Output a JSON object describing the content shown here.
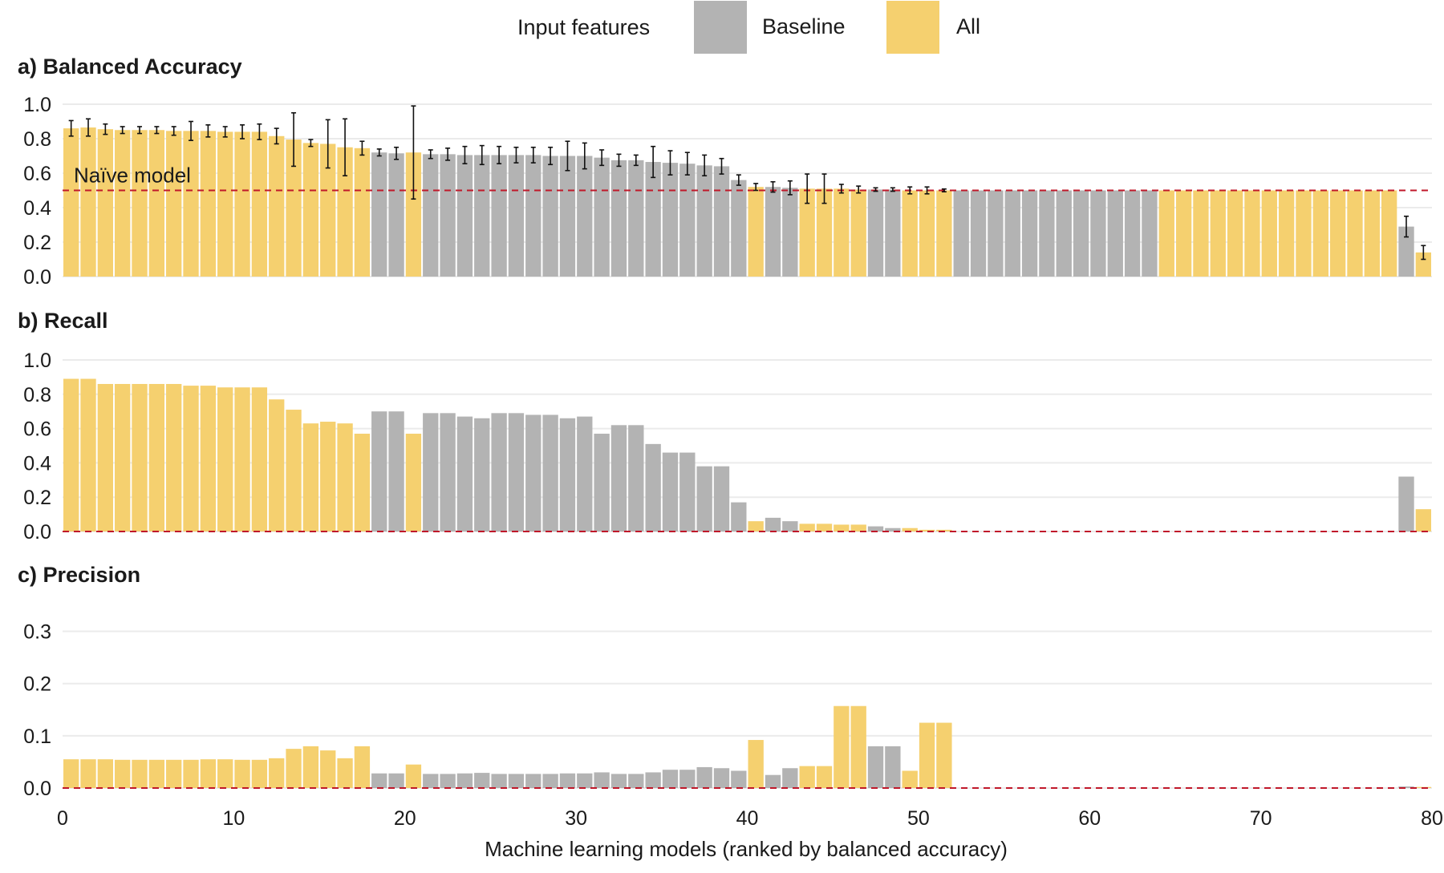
{
  "colors": {
    "baseline": "#B3B3B3",
    "all": "#F5D06F",
    "naive_line": "#C0182A",
    "grid": "#EBEBEB",
    "errorbar": "#111111"
  },
  "legend": {
    "title": "Input features",
    "items": [
      {
        "label": "Baseline",
        "color_key": "baseline"
      },
      {
        "label": "All",
        "color_key": "all"
      }
    ]
  },
  "chart_data": {
    "type": "bar",
    "xlabel": "Machine learning models (ranked by balanced accuracy)",
    "xlim": [
      0,
      80
    ],
    "xticks": [
      0,
      10,
      20,
      30,
      40,
      50,
      60,
      70,
      80
    ],
    "naive_label": "Naïve model",
    "groups": [
      "A",
      "A",
      "A",
      "A",
      "A",
      "A",
      "A",
      "A",
      "A",
      "A",
      "A",
      "A",
      "A",
      "A",
      "A",
      "A",
      "A",
      "A",
      "B",
      "B",
      "A",
      "B",
      "B",
      "B",
      "B",
      "B",
      "B",
      "B",
      "B",
      "B",
      "B",
      "B",
      "B",
      "B",
      "B",
      "B",
      "B",
      "B",
      "B",
      "B",
      "A",
      "B",
      "B",
      "A",
      "A",
      "A",
      "A",
      "B",
      "B",
      "A",
      "A",
      "A",
      "B",
      "B",
      "B",
      "B",
      "B",
      "B",
      "B",
      "B",
      "B",
      "B",
      "B",
      "B",
      "A",
      "A",
      "A",
      "A",
      "A",
      "A",
      "A",
      "A",
      "A",
      "A",
      "A",
      "A",
      "A",
      "A",
      "B",
      "A"
    ],
    "panels": [
      {
        "title": "a) Balanced Accuracy",
        "ylim": [
          0,
          1.0
        ],
        "yticks": [
          0.0,
          0.2,
          0.4,
          0.6,
          0.8,
          1.0
        ],
        "ytick_labels": [
          "0.0",
          "0.2",
          "0.4",
          "0.6",
          "0.8",
          "1.0"
        ],
        "naive": 0.5,
        "show_naive_label": true,
        "values": [
          0.86,
          0.865,
          0.855,
          0.85,
          0.85,
          0.85,
          0.845,
          0.845,
          0.845,
          0.84,
          0.84,
          0.84,
          0.815,
          0.795,
          0.775,
          0.77,
          0.75,
          0.745,
          0.72,
          0.715,
          0.72,
          0.71,
          0.71,
          0.705,
          0.705,
          0.705,
          0.705,
          0.705,
          0.7,
          0.7,
          0.7,
          0.69,
          0.675,
          0.675,
          0.665,
          0.66,
          0.655,
          0.645,
          0.64,
          0.56,
          0.52,
          0.52,
          0.515,
          0.51,
          0.51,
          0.51,
          0.505,
          0.505,
          0.505,
          0.5,
          0.5,
          0.5,
          0.5,
          0.5,
          0.5,
          0.5,
          0.5,
          0.5,
          0.5,
          0.5,
          0.5,
          0.5,
          0.5,
          0.5,
          0.5,
          0.5,
          0.5,
          0.5,
          0.5,
          0.5,
          0.5,
          0.5,
          0.5,
          0.5,
          0.5,
          0.5,
          0.5,
          0.5,
          0.29,
          0.14
        ],
        "err": [
          0.045,
          0.05,
          0.03,
          0.02,
          0.02,
          0.02,
          0.025,
          0.055,
          0.035,
          0.03,
          0.04,
          0.045,
          0.045,
          0.155,
          0.02,
          0.14,
          0.165,
          0.04,
          0.02,
          0.035,
          0.27,
          0.025,
          0.035,
          0.05,
          0.055,
          0.05,
          0.045,
          0.045,
          0.05,
          0.085,
          0.075,
          0.045,
          0.035,
          0.03,
          0.09,
          0.07,
          0.065,
          0.06,
          0.045,
          0.03,
          0.02,
          0.03,
          0.04,
          0.085,
          0.085,
          0.025,
          0.02,
          0.01,
          0.01,
          0.02,
          0.02,
          0.008,
          0,
          0,
          0,
          0,
          0,
          0,
          0,
          0,
          0,
          0,
          0,
          0,
          0,
          0,
          0,
          0,
          0,
          0,
          0,
          0,
          0,
          0,
          0,
          0,
          0,
          0,
          0.06,
          0.04
        ]
      },
      {
        "title": "b) Recall",
        "ylim": [
          0,
          1.0
        ],
        "yticks": [
          0.0,
          0.2,
          0.4,
          0.6,
          0.8,
          1.0
        ],
        "ytick_labels": [
          "0.0",
          "0.2",
          "0.4",
          "0.6",
          "0.8",
          "1.0"
        ],
        "naive": 0.0,
        "show_naive_label": false,
        "values": [
          0.89,
          0.89,
          0.86,
          0.86,
          0.86,
          0.86,
          0.86,
          0.85,
          0.85,
          0.84,
          0.84,
          0.84,
          0.77,
          0.71,
          0.63,
          0.64,
          0.63,
          0.57,
          0.7,
          0.7,
          0.57,
          0.69,
          0.69,
          0.67,
          0.66,
          0.69,
          0.69,
          0.68,
          0.68,
          0.66,
          0.67,
          0.57,
          0.62,
          0.62,
          0.51,
          0.46,
          0.46,
          0.38,
          0.38,
          0.17,
          0.06,
          0.08,
          0.06,
          0.045,
          0.045,
          0.04,
          0.04,
          0.03,
          0.02,
          0.02,
          0.01,
          0.01,
          0.0,
          0,
          0,
          0,
          0,
          0,
          0,
          0,
          0,
          0,
          0,
          0,
          0,
          0,
          0,
          0,
          0,
          0,
          0,
          0,
          0,
          0,
          0,
          0,
          0,
          0,
          0.32,
          0.13
        ]
      },
      {
        "title": "c) Precision",
        "ylim": [
          0,
          0.33
        ],
        "yticks": [
          0.0,
          0.1,
          0.2,
          0.3
        ],
        "ytick_labels": [
          "0.0",
          "0.1",
          "0.2",
          "0.3"
        ],
        "naive": 0.0,
        "show_naive_label": false,
        "values": [
          0.055,
          0.055,
          0.055,
          0.054,
          0.054,
          0.054,
          0.054,
          0.054,
          0.055,
          0.055,
          0.054,
          0.054,
          0.057,
          0.075,
          0.08,
          0.072,
          0.057,
          0.08,
          0.028,
          0.028,
          0.045,
          0.027,
          0.027,
          0.028,
          0.029,
          0.027,
          0.027,
          0.027,
          0.027,
          0.028,
          0.028,
          0.03,
          0.027,
          0.027,
          0.03,
          0.035,
          0.035,
          0.04,
          0.038,
          0.033,
          0.092,
          0.025,
          0.038,
          0.042,
          0.042,
          0.157,
          0.157,
          0.08,
          0.08,
          0.033,
          0.125,
          0.125,
          0,
          0,
          0,
          0,
          0,
          0,
          0,
          0,
          0,
          0,
          0,
          0,
          0,
          0,
          0,
          0,
          0,
          0,
          0,
          0,
          0,
          0,
          0,
          0,
          0,
          0,
          0.003,
          0.002
        ]
      }
    ]
  }
}
